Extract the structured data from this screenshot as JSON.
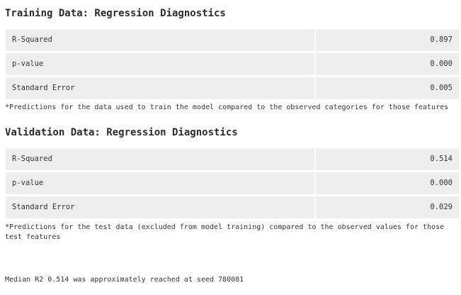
{
  "training": {
    "title": "Training Data: Regression Diagnostics",
    "rows": [
      {
        "label": "R-Squared",
        "value": "0.897"
      },
      {
        "label": "p-value",
        "value": "0.000"
      },
      {
        "label": "Standard Error",
        "value": "0.005"
      }
    ],
    "note": "*Predictions for the data used to train the model compared to the observed categories for those features"
  },
  "validation": {
    "title": "Validation Data: Regression Diagnostics",
    "rows": [
      {
        "label": "R-Squared",
        "value": "0.514"
      },
      {
        "label": "p-value",
        "value": "0.000"
      },
      {
        "label": "Standard Error",
        "value": "0.029"
      }
    ],
    "note": "*Predictions for the test data (excluded from model training) compared to the observed values for those test features"
  },
  "footer": {
    "text": "Median R2 0.514 was approximately reached at seed 780081"
  }
}
